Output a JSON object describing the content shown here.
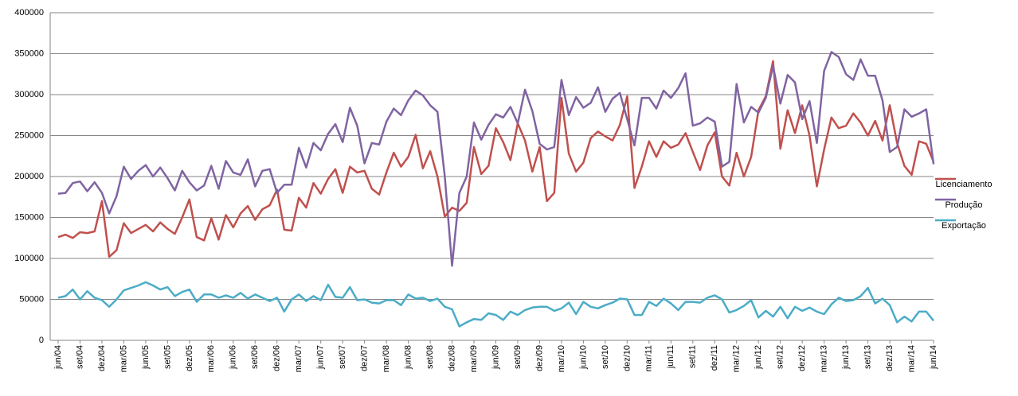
{
  "chart_data": {
    "type": "line",
    "categories": [
      "jun/04",
      null,
      null,
      "set/04",
      null,
      null,
      "dez/04",
      null,
      null,
      "mar/05",
      null,
      null,
      "jun/05",
      null,
      null,
      "set/05",
      null,
      null,
      "dez/05",
      null,
      null,
      "mar/06",
      null,
      null,
      "jun/06",
      null,
      null,
      "set/06",
      null,
      null,
      "dez/06",
      null,
      null,
      "mar/07",
      null,
      null,
      "jun/07",
      null,
      null,
      "set/07",
      null,
      null,
      "dez/07",
      null,
      null,
      "mar/08",
      null,
      null,
      "jun/08",
      null,
      null,
      "set/08",
      null,
      null,
      "dez/08",
      null,
      null,
      "mar/09",
      null,
      null,
      "jun/09",
      null,
      null,
      "set/09",
      null,
      null,
      "dez/09",
      null,
      null,
      "mar/10",
      null,
      null,
      "jun/10",
      null,
      null,
      "set/10",
      null,
      null,
      "dez/10",
      null,
      null,
      "mar/11",
      null,
      null,
      "jun/11",
      null,
      null,
      "set/11",
      null,
      null,
      "dez/11",
      null,
      null,
      "mar/12",
      null,
      null,
      "jun/12",
      null,
      null,
      "set/12",
      null,
      null,
      "dez/12",
      null,
      null,
      "mar/13",
      null,
      null,
      "jun/13",
      null,
      null,
      "set/13",
      null,
      null,
      "dez/13",
      null,
      null,
      "mar/14",
      null,
      null,
      "jun/14"
    ],
    "series": [
      {
        "name": "Licenciamento",
        "color": "#c0504d",
        "values": [
          126000,
          129000,
          125000,
          132000,
          131000,
          133000,
          170000,
          102000,
          110000,
          143000,
          131000,
          136000,
          141000,
          133000,
          144000,
          136000,
          130000,
          150000,
          172000,
          126000,
          122000,
          149000,
          123000,
          153000,
          138000,
          155000,
          164000,
          147000,
          160000,
          165000,
          184000,
          135000,
          134000,
          174000,
          162000,
          192000,
          179000,
          197000,
          209000,
          180000,
          212000,
          205000,
          207000,
          185000,
          178000,
          205000,
          229000,
          212000,
          224000,
          251000,
          210000,
          231000,
          200000,
          151000,
          162000,
          158000,
          168000,
          236000,
          203000,
          213000,
          259000,
          242000,
          220000,
          265000,
          244000,
          206000,
          236000,
          170000,
          180000,
          296000,
          228000,
          206000,
          217000,
          247000,
          255000,
          249000,
          244000,
          263000,
          298000,
          186000,
          212000,
          243000,
          224000,
          243000,
          235000,
          239000,
          253000,
          230000,
          208000,
          238000,
          254000,
          200000,
          189000,
          229000,
          200000,
          224000,
          281000,
          298000,
          341000,
          234000,
          281000,
          253000,
          287000,
          250000,
          188000,
          233000,
          272000,
          259000,
          262000,
          277000,
          266000,
          250000,
          268000,
          244000,
          287000,
          241000,
          213000,
          202000,
          243000,
          240000,
          218000
        ]
      },
      {
        "name": "Produção",
        "color": "#8064a2",
        "values": [
          179000,
          180000,
          192000,
          194000,
          182000,
          193000,
          180000,
          155000,
          176000,
          212000,
          197000,
          207000,
          214000,
          200000,
          211000,
          198000,
          183000,
          207000,
          193000,
          183000,
          189000,
          213000,
          185000,
          219000,
          205000,
          202000,
          221000,
          188000,
          207000,
          209000,
          180000,
          190000,
          190000,
          235000,
          211000,
          241000,
          232000,
          252000,
          264000,
          242000,
          284000,
          262000,
          216000,
          241000,
          239000,
          267000,
          283000,
          275000,
          293000,
          305000,
          299000,
          287000,
          279000,
          200000,
          91000,
          180000,
          200000,
          266000,
          245000,
          263000,
          276000,
          272000,
          285000,
          265000,
          306000,
          280000,
          240000,
          233000,
          236000,
          318000,
          275000,
          297000,
          284000,
          290000,
          309000,
          279000,
          295000,
          302000,
          270000,
          238000,
          296000,
          296000,
          283000,
          305000,
          296000,
          308000,
          326000,
          262000,
          265000,
          272000,
          267000,
          212000,
          218000,
          313000,
          266000,
          285000,
          278000,
          296000,
          335000,
          289000,
          324000,
          315000,
          270000,
          292000,
          241000,
          329000,
          352000,
          346000,
          325000,
          318000,
          343000,
          323000,
          323000,
          293000,
          230000,
          236000,
          282000,
          273000,
          277000,
          282000,
          215000
        ]
      },
      {
        "name": "Exportação",
        "color": "#4bacc6",
        "values": [
          52000,
          54000,
          62000,
          50000,
          60000,
          52000,
          49000,
          41000,
          50000,
          61000,
          64000,
          67000,
          71000,
          67000,
          62000,
          65000,
          54000,
          59000,
          62000,
          47000,
          56000,
          56000,
          52000,
          55000,
          52000,
          58000,
          51000,
          56000,
          52000,
          48000,
          52000,
          35000,
          50000,
          56000,
          48000,
          54000,
          49000,
          68000,
          53000,
          52000,
          65000,
          49000,
          50000,
          46000,
          45000,
          49000,
          49000,
          43000,
          56000,
          51000,
          52000,
          48000,
          51000,
          41000,
          38000,
          17000,
          22000,
          26000,
          25000,
          33000,
          31000,
          25000,
          35000,
          31000,
          37000,
          40000,
          41000,
          41000,
          36000,
          39000,
          46000,
          32000,
          47000,
          41000,
          39000,
          43000,
          46000,
          51000,
          50000,
          31000,
          31000,
          47000,
          42000,
          51000,
          45000,
          37000,
          47000,
          47000,
          46000,
          52000,
          55000,
          50000,
          34000,
          37000,
          42000,
          49000,
          28000,
          36000,
          29000,
          41000,
          27000,
          41000,
          36000,
          40000,
          35000,
          32000,
          44000,
          52000,
          48000,
          49000,
          54000,
          64000,
          45000,
          51000,
          43000,
          22000,
          29000,
          23000,
          35000,
          35000,
          24000
        ]
      }
    ],
    "ylim": [
      0,
      400000
    ],
    "yticks": [
      0,
      50000,
      100000,
      150000,
      200000,
      250000,
      300000,
      350000,
      400000
    ],
    "grid": true,
    "legend": "right"
  }
}
